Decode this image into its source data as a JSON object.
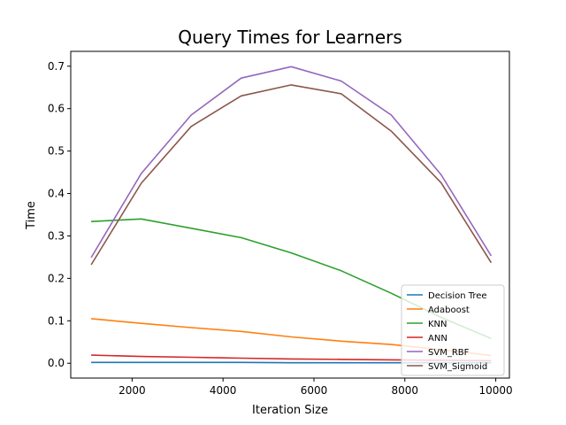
{
  "chart_data": {
    "type": "line",
    "title": "Query Times for Learners",
    "xlabel": "Iteration Size",
    "ylabel": "Time",
    "xlim": [
      650,
      10300
    ],
    "ylim": [
      -0.035,
      0.735
    ],
    "xticks": [
      2000,
      4000,
      6000,
      8000,
      10000
    ],
    "yticks": [
      0.0,
      0.1,
      0.2,
      0.3,
      0.4,
      0.5,
      0.6,
      0.7
    ],
    "xtick_labels": [
      "2000",
      "4000",
      "6000",
      "8000",
      "10000"
    ],
    "ytick_labels": [
      "0.0",
      "0.1",
      "0.2",
      "0.3",
      "0.4",
      "0.5",
      "0.6",
      "0.7"
    ],
    "legend_position": "lower-right",
    "grid": false,
    "x": [
      1100,
      2200,
      3300,
      4400,
      5500,
      6600,
      7700,
      8800,
      9900
    ],
    "series": [
      {
        "name": "Decision Tree",
        "color": "#1f77b4",
        "values": [
          0.002,
          0.002,
          0.002,
          0.002,
          0.001,
          0.001,
          0.001,
          0.001,
          0.001
        ]
      },
      {
        "name": "Adaboost",
        "color": "#ff7f0e",
        "values": [
          0.105,
          0.094,
          0.084,
          0.075,
          0.062,
          0.052,
          0.044,
          0.032,
          0.018
        ]
      },
      {
        "name": "KNN",
        "color": "#2ca02c",
        "values": [
          0.334,
          0.34,
          0.318,
          0.296,
          0.26,
          0.218,
          0.165,
          0.108,
          0.058
        ]
      },
      {
        "name": "ANN",
        "color": "#d62728",
        "values": [
          0.019,
          0.016,
          0.014,
          0.012,
          0.01,
          0.009,
          0.008,
          0.007,
          0.006
        ]
      },
      {
        "name": "SVM_RBF",
        "color": "#9467bd",
        "values": [
          0.249,
          0.447,
          0.585,
          0.672,
          0.699,
          0.665,
          0.585,
          0.444,
          0.253
        ]
      },
      {
        "name": "SVM_Sigmoid",
        "color": "#8c564b",
        "values": [
          0.232,
          0.424,
          0.558,
          0.63,
          0.656,
          0.635,
          0.547,
          0.425,
          0.237
        ]
      }
    ]
  }
}
